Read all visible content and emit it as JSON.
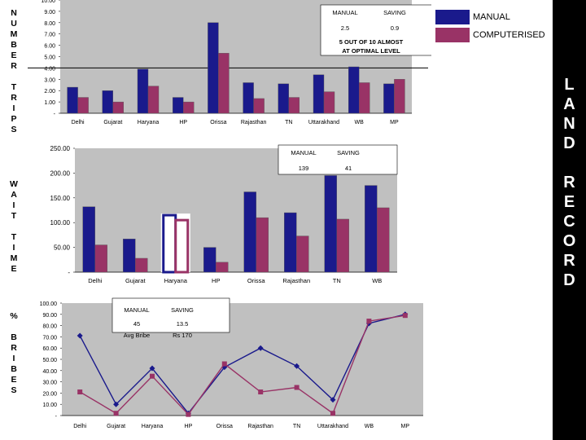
{
  "side_labels": {
    "trips": "N\nU\nM\nB\nE\nR\n\nT\nR\nI\nP\nS",
    "wait": "W\nA\nI\nT\n\nT\nI\nM\nE",
    "bribes": "%\n\nB\nR\nI\nB\nE\nS"
  },
  "legend": {
    "manual": "MANUAL",
    "computerised": "COMPUTERISED"
  },
  "right_panel": {
    "text": "L\nA\nN\nD\n\nR\nE\nC\nO\nR\nD"
  },
  "colors": {
    "manual": "#1a1a8c",
    "computerised": "#993366",
    "plot_bg": "#c0c0c0",
    "panel": "#000000"
  },
  "chart_data": [
    {
      "type": "bar",
      "title": "Number of trips",
      "categories": [
        "Delhi",
        "Gujarat",
        "Haryana",
        "HP",
        "Orissa",
        "Rajasthan",
        "TN",
        "Uttarakhand",
        "WB",
        "MP"
      ],
      "series": [
        {
          "name": "MANUAL",
          "values": [
            2.3,
            2.0,
            3.9,
            1.4,
            8.0,
            2.7,
            2.6,
            3.4,
            4.1,
            2.6
          ]
        },
        {
          "name": "COMPUTERISED",
          "values": [
            1.4,
            1.0,
            2.4,
            1.0,
            5.3,
            1.3,
            1.4,
            1.9,
            2.7,
            3.0
          ]
        }
      ],
      "ylim": [
        0,
        10
      ],
      "yticks": [
        "-",
        "1.00",
        "2.00",
        "3.00",
        "4.00",
        "5.00",
        "6.00",
        "7.00",
        "8.00",
        "9.00",
        "10.00"
      ],
      "reference_line": 4,
      "note": {
        "col1": "MANUAL",
        "col2": "SAVING",
        "val1": "2.5",
        "val2": "0.9",
        "line1": "5 OUT OF 10 ALMOST",
        "line2": "AT OPTIMAL LEVEL"
      }
    },
    {
      "type": "bar",
      "title": "Wait time",
      "categories": [
        "Delhi",
        "Gujarat",
        "Haryana",
        "HP",
        "Orissa",
        "Rajasthan",
        "TN",
        "WB"
      ],
      "series": [
        {
          "name": "MANUAL",
          "values": [
            132,
            67,
            115,
            50,
            162,
            120,
            195,
            175
          ]
        },
        {
          "name": "COMPUTERISED",
          "values": [
            55,
            28,
            105,
            20,
            110,
            73,
            107,
            130
          ]
        }
      ],
      "ylim": [
        0,
        250
      ],
      "yticks": [
        "-",
        "50.00",
        "100.00",
        "150.00",
        "200.00",
        "250.00"
      ],
      "highlight_category": "Haryana",
      "note": {
        "col1": "MANUAL",
        "col2": "SAVING",
        "val1": "139",
        "val2": "41"
      }
    },
    {
      "type": "line",
      "title": "% Bribes",
      "categories": [
        "Delhi",
        "Gujarat",
        "Haryana",
        "HP",
        "Orissa",
        "Rajasthan",
        "TN",
        "Uttarakhand",
        "WB",
        "MP"
      ],
      "series": [
        {
          "name": "MANUAL",
          "values": [
            71,
            10,
            42,
            2,
            43,
            60,
            44,
            14,
            82,
            90
          ]
        },
        {
          "name": "COMPUTERISED",
          "values": [
            21,
            2,
            35,
            1,
            46,
            21,
            25,
            2,
            84,
            89
          ]
        }
      ],
      "ylim": [
        0,
        100
      ],
      "yticks": [
        "-",
        "10.00",
        "20.00",
        "30.00",
        "40.00",
        "50.00",
        "60.00",
        "70.00",
        "80.00",
        "90.00",
        "100.00"
      ],
      "note": {
        "col1": "MANUAL",
        "col2": "SAVING",
        "val1": "45",
        "val2": "13.5",
        "sub1": "Avg Bribe",
        "sub2": "Rs 170"
      }
    }
  ]
}
